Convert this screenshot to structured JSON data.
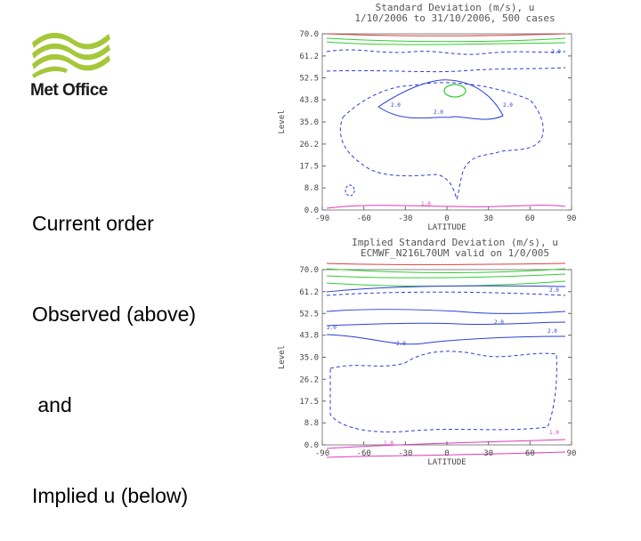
{
  "logo": {
    "text": "Met Office",
    "colors": {
      "leaf": "#a5c73a",
      "text": "#1a1a1a"
    }
  },
  "caption": {
    "lines": [
      "Current order",
      "Observed (above)",
      " and",
      "Implied u (below)"
    ]
  },
  "chart_data": [
    {
      "type": "contour",
      "title": "Standard Deviation (m/s), u",
      "subtitle": "1/10/2006 to 31/10/2006,  500 cases",
      "xlabel": "LATITUDE",
      "ylabel": "Level",
      "x_ticks": [
        -90,
        -60,
        -30,
        0,
        30,
        60,
        90
      ],
      "y_ticks": [
        "0.0",
        "8.8",
        "17.5",
        "26.2",
        "35.0",
        "43.8",
        "52.5",
        "61.2",
        "70.0"
      ],
      "xlim": [
        -90,
        90
      ],
      "ylim": [
        0,
        70
      ],
      "contour_labels": [
        "2.0",
        "2.0",
        "2.0",
        "2.0",
        "1.0"
      ],
      "colors": {
        "blue": "#2b3fd6",
        "green": "#33cc33",
        "magenta": "#e03ab8",
        "red": "#d84040"
      }
    },
    {
      "type": "contour",
      "title": "Implied Standard Deviation (m/s), u",
      "subtitle": "ECMWF_N216L70UM valid on 1/0/005",
      "xlabel": "LATITUDE",
      "ylabel": "Level",
      "x_ticks": [
        -90,
        -60,
        -30,
        0,
        30,
        60,
        90
      ],
      "y_ticks": [
        "0.0",
        "8.8",
        "17.5",
        "26.2",
        "35.0",
        "43.8",
        "52.5",
        "61.2",
        "70.0"
      ],
      "xlim": [
        -90,
        90
      ],
      "ylim": [
        0,
        70
      ],
      "contour_labels": [
        "2.0",
        "2.0",
        "2.0",
        "2.0",
        "2.0",
        "1.0",
        "1.0"
      ],
      "colors": {
        "blue": "#2b3fd6",
        "green": "#33cc33",
        "magenta": "#e03ab8",
        "red": "#d84040"
      }
    }
  ]
}
